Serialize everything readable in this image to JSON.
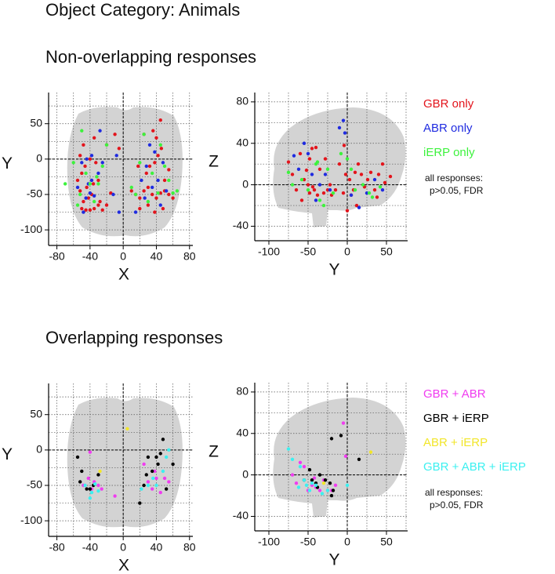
{
  "title": "Object Category: Animals",
  "sections": [
    "Non-overlapping responses",
    "Overlapping responses"
  ],
  "chart_data": [
    {
      "type": "scatter",
      "xlabel": "X",
      "ylabel": "Y",
      "xlim": [
        -90,
        84
      ],
      "ylim": [
        -122,
        94
      ],
      "xticks": [
        -80,
        -40,
        0,
        40,
        80
      ],
      "yticks": [
        50,
        0,
        -50,
        -100
      ],
      "grid": true,
      "zero_lines": true,
      "series": [
        {
          "color": "#e3141c",
          "x": [
            -50,
            -45,
            -40,
            -35,
            -30,
            -48,
            -42,
            -38,
            -52,
            -44,
            -36,
            -30,
            -50,
            -46,
            -40,
            -52,
            -48,
            -35,
            -28,
            -25,
            -20,
            -55,
            -15,
            -10,
            -5,
            -33,
            10,
            15,
            20,
            25,
            30,
            35,
            40,
            45,
            50,
            55,
            60,
            28,
            32,
            38,
            42,
            46,
            40,
            36,
            45,
            20,
            30,
            50,
            55,
            25,
            18,
            48,
            38,
            -20
          ],
          "y": [
            -70,
            -72,
            -72,
            -70,
            -65,
            -60,
            -55,
            -50,
            -45,
            -40,
            -35,
            -30,
            -20,
            -10,
            0,
            5,
            20,
            30,
            -60,
            -72,
            -65,
            -30,
            -48,
            35,
            15,
            -5,
            -45,
            -50,
            -55,
            -45,
            -40,
            -50,
            -55,
            -48,
            -45,
            -50,
            -55,
            -20,
            -10,
            -5,
            5,
            15,
            30,
            40,
            55,
            -70,
            -65,
            -30,
            -15,
            35,
            -10,
            -70,
            -75,
            20
          ]
        },
        {
          "color": "#1f2be0",
          "x": [
            -45,
            -40,
            -35,
            -42,
            -38,
            -50,
            -44,
            -38,
            -30,
            -25,
            -48,
            -5,
            -12,
            -8,
            -28,
            15,
            22,
            28,
            35,
            42,
            48,
            52,
            45,
            38,
            26,
            32,
            -55
          ],
          "y": [
            -55,
            -48,
            -52,
            -35,
            -30,
            -5,
            0,
            5,
            -20,
            -5,
            -75,
            -75,
            -50,
            5,
            40,
            -75,
            -30,
            -10,
            -40,
            -30,
            -5,
            -45,
            -65,
            10,
            -55,
            20,
            -40
          ]
        },
        {
          "color": "#3df23d",
          "x": [
            -52,
            -45,
            -40,
            -35,
            -30,
            -55,
            -60,
            -70,
            -50,
            -25,
            -20,
            10,
            15,
            20,
            25,
            30,
            35,
            42,
            50,
            55,
            60,
            65,
            45,
            -32
          ],
          "y": [
            -50,
            -20,
            -35,
            -60,
            -35,
            -65,
            -5,
            -35,
            40,
            -10,
            20,
            -40,
            -50,
            -5,
            35,
            -60,
            -20,
            -48,
            -10,
            -30,
            -48,
            -45,
            20,
            -25
          ]
        }
      ]
    },
    {
      "type": "scatter",
      "xlabel": "Y",
      "ylabel": "Z",
      "xlim": [
        -118,
        77
      ],
      "ylim": [
        -54,
        89
      ],
      "xticks": [
        -100,
        -50,
        0,
        50
      ],
      "yticks": [
        80,
        40,
        0,
        -40
      ],
      "grid": true,
      "zero_lines": true,
      "series": [
        {
          "name": "GBR only",
          "color": "#e3141c",
          "x": [
            -75,
            -70,
            -65,
            -60,
            -55,
            -50,
            -48,
            -45,
            -42,
            -38,
            -35,
            -30,
            -25,
            -20,
            -15,
            -10,
            -5,
            -2,
            0,
            3,
            5,
            8,
            10,
            14,
            18,
            22,
            26,
            30,
            35,
            40,
            45,
            48,
            55,
            -58,
            -48,
            -40,
            -28,
            -22,
            -52,
            -4,
            12,
            38,
            -44
          ],
          "y": [
            22,
            10,
            -5,
            30,
            5,
            0,
            -8,
            35,
            -5,
            -10,
            15,
            -8,
            -5,
            -10,
            -5,
            20,
            -8,
            10,
            -25,
            5,
            -10,
            -5,
            12,
            20,
            10,
            -2,
            5,
            12,
            -5,
            10,
            20,
            2,
            8,
            -15,
            25,
            36,
            25,
            0,
            14,
            38,
            -20,
            -12,
            -2
          ]
        },
        {
          "name": "ABR only",
          "color": "#1f2be0",
          "x": [
            -68,
            -62,
            -55,
            -50,
            -45,
            -35,
            -28,
            -22,
            -10,
            -5,
            -3,
            5,
            15,
            25,
            35,
            45,
            -40
          ],
          "y": [
            28,
            15,
            40,
            30,
            10,
            0,
            10,
            -5,
            55,
            62,
            50,
            -10,
            -22,
            -8,
            5,
            -5,
            -15
          ]
        },
        {
          "name": "iERP only",
          "color": "#3df23d",
          "x": [
            -75,
            -70,
            -58,
            -50,
            -40,
            -35,
            -30,
            -25,
            -18,
            -8,
            0,
            5,
            10,
            20,
            28,
            32,
            42,
            -38
          ],
          "y": [
            12,
            0,
            5,
            -5,
            20,
            -15,
            -20,
            15,
            -8,
            30,
            25,
            15,
            -5,
            0,
            -8,
            -12,
            -2,
            22
          ]
        }
      ],
      "annotation": [
        "all responses:",
        "p>0.05, FDR"
      ]
    },
    {
      "type": "scatter",
      "xlabel": "X",
      "ylabel": "Y",
      "xlim": [
        -90,
        84
      ],
      "ylim": [
        -122,
        94
      ],
      "xticks": [
        -80,
        -40,
        0,
        40,
        80
      ],
      "yticks": [
        50,
        0,
        -50,
        -100
      ],
      "grid": true,
      "zero_lines": true,
      "series": [
        {
          "color": "#f03cf0",
          "x": [
            -48,
            -42,
            -38,
            -35,
            -30,
            -26,
            -40,
            -10,
            25,
            30,
            35,
            40,
            45,
            50,
            55,
            38
          ],
          "y": [
            -50,
            -40,
            -55,
            -45,
            -50,
            -55,
            -3,
            -65,
            -20,
            -45,
            -55,
            -40,
            -60,
            -40,
            -45,
            -30
          ]
        },
        {
          "color": "#000000",
          "x": [
            -55,
            -50,
            -52,
            -44,
            -40,
            -36,
            -30,
            20,
            25,
            30,
            35,
            42,
            45,
            48,
            52,
            60,
            40,
            28
          ],
          "y": [
            -10,
            -30,
            -45,
            -55,
            -55,
            -50,
            -35,
            -75,
            -50,
            -10,
            -30,
            -20,
            -5,
            15,
            -55,
            -20,
            -10,
            -35
          ]
        },
        {
          "color": "#f2e62a",
          "x": [
            5,
            -28
          ],
          "y": [
            30,
            -30
          ]
        },
        {
          "color": "#3cf0f0",
          "x": [
            -46,
            -40,
            -34,
            -30,
            -38,
            22,
            30,
            36,
            48,
            52,
            40,
            55
          ],
          "y": [
            -50,
            -68,
            -48,
            -58,
            -60,
            -55,
            -50,
            -40,
            -30,
            -10,
            -50,
            0
          ]
        }
      ]
    },
    {
      "type": "scatter",
      "xlabel": "Y",
      "ylabel": "Z",
      "xlim": [
        -118,
        77
      ],
      "ylim": [
        -54,
        89
      ],
      "xticks": [
        -100,
        -50,
        0,
        50
      ],
      "yticks": [
        80,
        40,
        0,
        -40
      ],
      "grid": true,
      "zero_lines": true,
      "series": [
        {
          "name": "GBR + ABR",
          "color": "#f03cf0",
          "x": [
            -70,
            -65,
            -60,
            -55,
            -50,
            -45,
            -40,
            -35,
            -30,
            -25,
            -20,
            -15,
            -5,
            -2,
            -42
          ],
          "y": [
            0,
            -8,
            12,
            8,
            -15,
            -10,
            -12,
            -15,
            -5,
            -15,
            -15,
            -10,
            50,
            18,
            -3
          ]
        },
        {
          "name": "GBR + iERP",
          "color": "#000000",
          "x": [
            -55,
            -48,
            -45,
            -40,
            -35,
            -28,
            -22,
            -20,
            -18,
            -20,
            -8,
            15,
            -38
          ],
          "y": [
            -5,
            5,
            -5,
            -8,
            0,
            -5,
            -8,
            -20,
            -15,
            35,
            38,
            15,
            -12
          ]
        },
        {
          "name": "ABR + iERP",
          "color": "#f2e62a",
          "x": [
            30,
            -30
          ],
          "y": [
            22,
            -8
          ]
        },
        {
          "name": "GBR + ABR + iERP",
          "color": "#3cf0f0",
          "x": [
            -75,
            -70,
            -60,
            -55,
            -52,
            -48,
            -45,
            -40,
            -32,
            -25,
            0,
            -62
          ],
          "y": [
            25,
            15,
            8,
            -5,
            -10,
            -15,
            -8,
            -10,
            -18,
            -15,
            -10,
            -12
          ]
        }
      ],
      "annotation": [
        "all responses:",
        "p>0.05, FDR"
      ]
    }
  ]
}
